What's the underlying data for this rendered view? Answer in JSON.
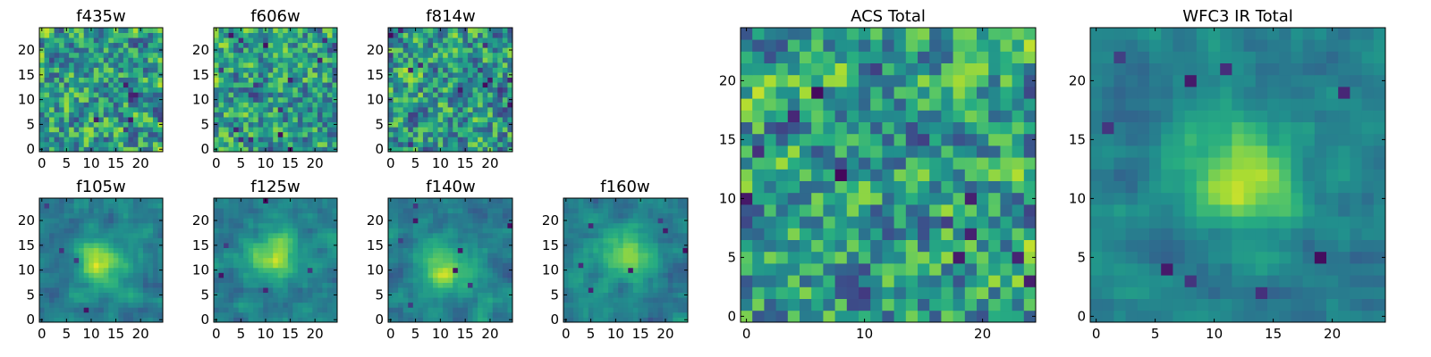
{
  "figure": {
    "type": "heatmap-grid",
    "panel_count": 9
  },
  "colors": {
    "colormap": "viridis",
    "frame": "#000000",
    "background": "#ffffff"
  },
  "chart_data": [
    {
      "type": "heatmap",
      "title": "f435w",
      "grid": 25,
      "xticks": [
        0,
        5,
        10,
        15,
        20
      ],
      "yticks": [
        0,
        5,
        10,
        15,
        20
      ],
      "seed": 1,
      "structure": "noise",
      "dark_pixels": 8
    },
    {
      "type": "heatmap",
      "title": "f606w",
      "grid": 25,
      "xticks": [
        0,
        5,
        10,
        15,
        20
      ],
      "yticks": [
        0,
        5,
        10,
        15,
        20
      ],
      "seed": 2,
      "structure": "noise",
      "dark_pixels": 14
    },
    {
      "type": "heatmap",
      "title": "f814w",
      "grid": 25,
      "xticks": [
        0,
        5,
        10,
        15,
        20
      ],
      "yticks": [
        0,
        5,
        10,
        15,
        20
      ],
      "seed": 3,
      "structure": "noise",
      "dark_pixels": 14
    },
    {
      "type": "heatmap",
      "title": "f105w",
      "grid": 25,
      "xticks": [
        0,
        5,
        10,
        15,
        20
      ],
      "yticks": [
        0,
        5,
        10,
        15,
        20
      ],
      "seed": 4,
      "structure": "source",
      "source_center": [
        12,
        11
      ],
      "dark_pixels": 4
    },
    {
      "type": "heatmap",
      "title": "f125w",
      "grid": 25,
      "xticks": [
        0,
        5,
        10,
        15,
        20
      ],
      "yticks": [
        0,
        5,
        10,
        15,
        20
      ],
      "seed": 5,
      "structure": "source",
      "source_center": [
        12,
        13
      ],
      "dark_pixels": 5
    },
    {
      "type": "heatmap",
      "title": "f140w",
      "grid": 25,
      "xticks": [
        0,
        5,
        10,
        15,
        20
      ],
      "yticks": [
        0,
        5,
        10,
        15,
        20
      ],
      "seed": 6,
      "structure": "source",
      "source_center": [
        11,
        10
      ],
      "dark_pixels": 8
    },
    {
      "type": "heatmap",
      "title": "f160w",
      "grid": 25,
      "xticks": [
        0,
        5,
        10,
        15,
        20
      ],
      "yticks": [
        0,
        5,
        10,
        15,
        20
      ],
      "seed": 7,
      "structure": "source",
      "source_center": [
        12,
        13
      ],
      "dark_pixels": 7
    },
    {
      "type": "heatmap",
      "title": "ACS Total",
      "grid": 25,
      "xticks": [
        0,
        10,
        20
      ],
      "yticks": [
        0,
        5,
        10,
        15,
        20
      ],
      "seed": 8,
      "structure": "noise",
      "dark_pixels": 12
    },
    {
      "type": "heatmap",
      "title": "WFC3 IR Total",
      "grid": 25,
      "xticks": [
        0,
        5,
        10,
        15,
        20
      ],
      "yticks": [
        0,
        5,
        10,
        15,
        20
      ],
      "seed": 9,
      "structure": "source",
      "source_center": [
        12,
        12
      ],
      "dark_pixels": 9
    }
  ]
}
